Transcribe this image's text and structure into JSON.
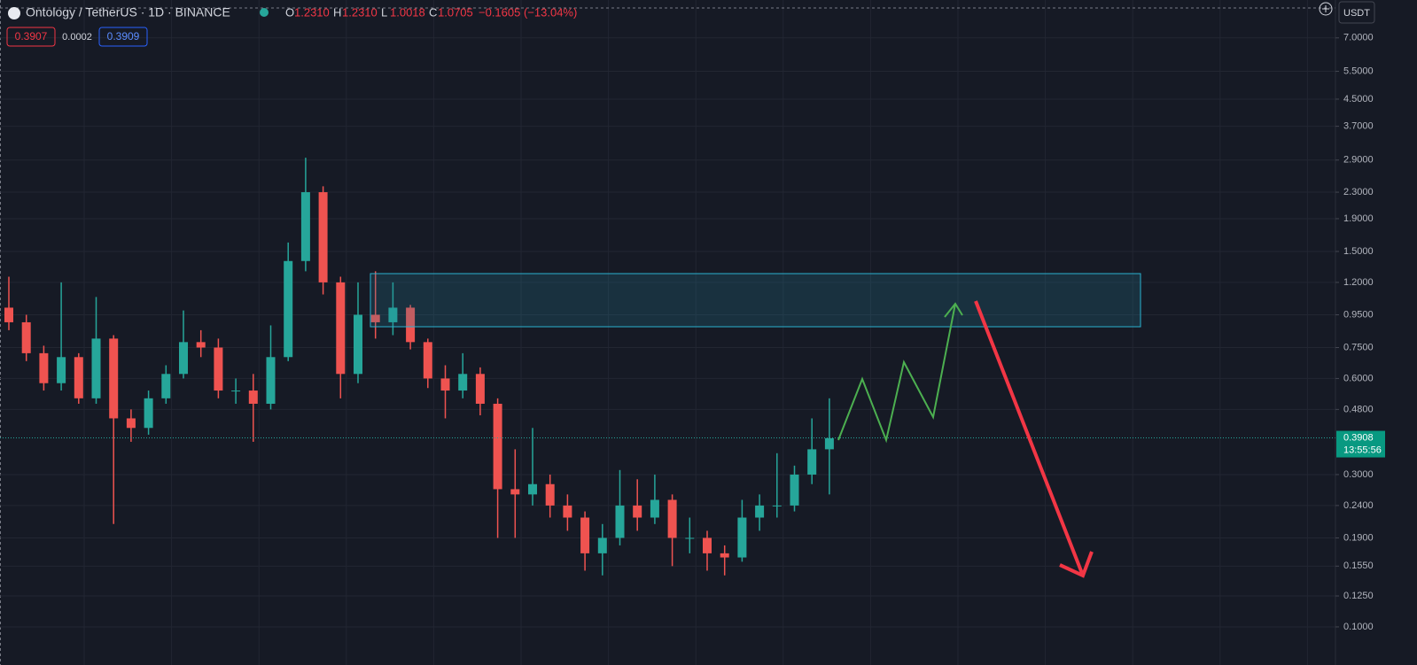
{
  "header": {
    "symbol": "Ontology / TetherUS · 1D · BINANCE",
    "ohlc": [
      [
        "O",
        "1.2310"
      ],
      [
        "H",
        "1.2310"
      ],
      [
        "L",
        "1.0018"
      ],
      [
        "C",
        "1.0705"
      ]
    ],
    "change": "−0.1605 (−13.04%)",
    "bid": "0.3907",
    "spread": "0.0002",
    "ask": "0.3909",
    "currency": "USDT"
  },
  "chart_data": {
    "type": "candlestick",
    "log_scale": true,
    "grid": true,
    "up_color": "#26a69a",
    "down_color": "#ef5350",
    "open": [
      1.0,
      0.9,
      0.72,
      0.58,
      0.7,
      0.52,
      0.8,
      0.45,
      0.42,
      0.52,
      0.62,
      0.78,
      0.75,
      0.55,
      0.55,
      0.5,
      0.7,
      1.4,
      2.3,
      1.2,
      0.62,
      0.95,
      0.9,
      1.0,
      0.78,
      0.6,
      0.55,
      0.62,
      0.5,
      0.27,
      0.26,
      0.28,
      0.24,
      0.22,
      0.17,
      0.19,
      0.24,
      0.22,
      0.25,
      0.19,
      0.19,
      0.17,
      0.165,
      0.22,
      0.24,
      0.24,
      0.3,
      0.36
    ],
    "high": [
      1.25,
      0.95,
      0.76,
      1.2,
      0.72,
      1.08,
      0.82,
      0.48,
      0.55,
      0.66,
      0.98,
      0.85,
      0.8,
      0.6,
      0.62,
      0.88,
      1.6,
      2.95,
      2.4,
      1.25,
      1.2,
      1.3,
      1.2,
      1.02,
      0.8,
      0.66,
      0.72,
      0.65,
      0.52,
      0.36,
      0.42,
      0.3,
      0.26,
      0.23,
      0.21,
      0.31,
      0.29,
      0.3,
      0.26,
      0.22,
      0.2,
      0.18,
      0.25,
      0.26,
      0.35,
      0.32,
      0.45,
      0.52
    ],
    "low": [
      0.85,
      0.68,
      0.55,
      0.55,
      0.5,
      0.5,
      0.21,
      0.38,
      0.4,
      0.5,
      0.6,
      0.7,
      0.52,
      0.5,
      0.38,
      0.48,
      0.68,
      1.3,
      1.1,
      0.52,
      0.58,
      0.8,
      0.82,
      0.74,
      0.56,
      0.45,
      0.52,
      0.46,
      0.19,
      0.19,
      0.24,
      0.22,
      0.2,
      0.15,
      0.145,
      0.18,
      0.2,
      0.21,
      0.155,
      0.17,
      0.15,
      0.145,
      0.16,
      0.2,
      0.22,
      0.23,
      0.28,
      0.26
    ],
    "close": [
      0.9,
      0.72,
      0.58,
      0.7,
      0.52,
      0.8,
      0.45,
      0.42,
      0.52,
      0.62,
      0.78,
      0.75,
      0.55,
      0.55,
      0.5,
      0.7,
      1.4,
      2.3,
      1.2,
      0.62,
      0.95,
      0.9,
      1.0,
      0.78,
      0.6,
      0.55,
      0.62,
      0.5,
      0.27,
      0.26,
      0.28,
      0.24,
      0.22,
      0.17,
      0.19,
      0.24,
      0.22,
      0.25,
      0.19,
      0.19,
      0.17,
      0.165,
      0.22,
      0.24,
      0.24,
      0.3,
      0.36,
      0.39
    ],
    "ylim": [
      0.0836,
      9.2
    ],
    "yticks": [
      {
        "value": 7,
        "label": "7.0000"
      },
      {
        "value": 5.5,
        "label": "5.5000"
      },
      {
        "value": 4.5,
        "label": "4.5000"
      },
      {
        "value": 3.7,
        "label": "3.7000"
      },
      {
        "value": 2.9,
        "label": "2.9000"
      },
      {
        "value": 2.3,
        "label": "2.3000"
      },
      {
        "value": 1.9,
        "label": "1.9000"
      },
      {
        "value": 1.5,
        "label": "1.5000"
      },
      {
        "value": 1.2,
        "label": "1.2000"
      },
      {
        "value": 0.95,
        "label": "0.9500"
      },
      {
        "value": 0.75,
        "label": "0.7500"
      },
      {
        "value": 0.6,
        "label": "0.6000"
      },
      {
        "value": 0.48,
        "label": "0.4800"
      },
      {
        "value": 0.3,
        "label": "0.3000"
      },
      {
        "value": 0.24,
        "label": "0.2400"
      },
      {
        "value": 0.19,
        "label": "0.1900"
      },
      {
        "value": 0.155,
        "label": "0.1550"
      },
      {
        "value": 0.125,
        "label": "0.1250"
      },
      {
        "value": 0.1,
        "label": "0.1000"
      }
    ],
    "last_price": 0.3908,
    "countdown": "13:55:56"
  }
}
